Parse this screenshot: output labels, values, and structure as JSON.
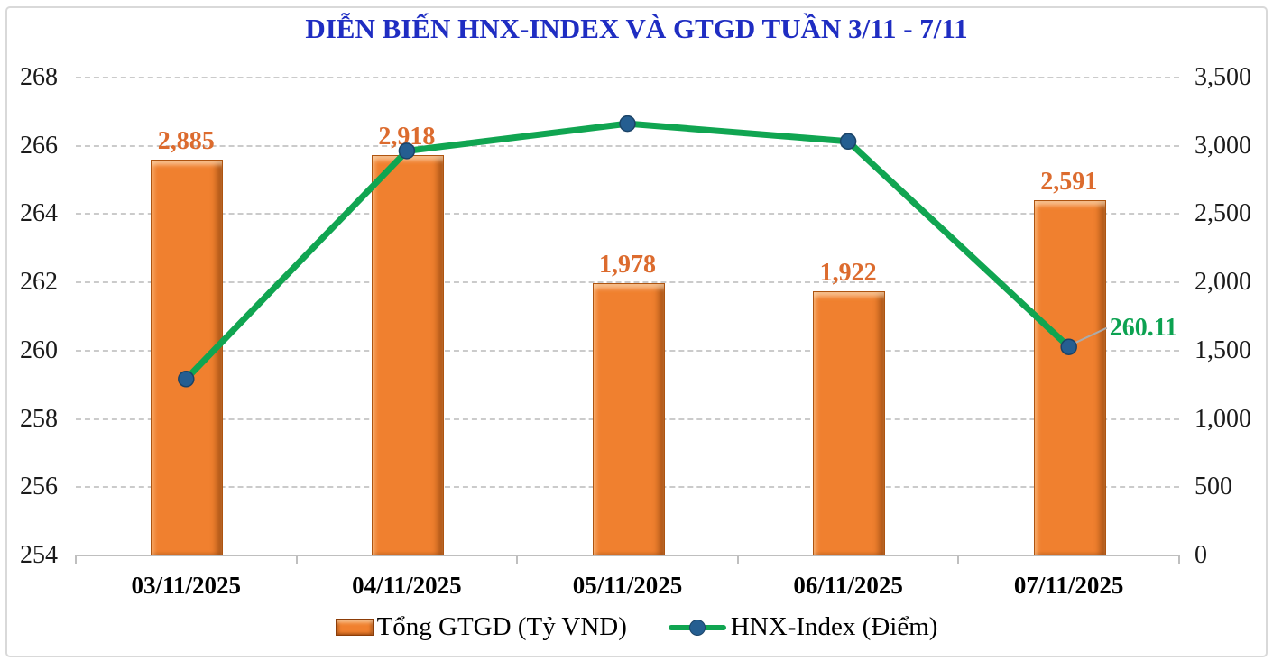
{
  "title": "DIỄN BIẾN HNX-INDEX VÀ GTGD TUẦN 3/11 - 7/11",
  "chart_data": {
    "type": "combo-bar-line",
    "title": "DIỄN BIẾN HNX-INDEX VÀ GTGD TUẦN 3/11 - 7/11",
    "categories": [
      "03/11/2025",
      "04/11/2025",
      "05/11/2025",
      "06/11/2025",
      "07/11/2025"
    ],
    "series": [
      {
        "name": "Tổng GTGD (Tỷ VND)",
        "type": "bar",
        "axis": "right",
        "values": [
          2885,
          2918,
          1978,
          1922,
          2591
        ],
        "labels": [
          "2,885",
          "2,918",
          "1,978",
          "1,922",
          "2,591"
        ],
        "color": "#F0802F",
        "label_color": "#DC6B2E"
      },
      {
        "name": "HNX-Index (Điểm)",
        "type": "line",
        "axis": "left",
        "values": [
          259.17,
          265.85,
          266.65,
          266.13,
          260.11
        ],
        "color": "#10A551",
        "marker_color": "#255E91",
        "last_point_label": "260.11",
        "last_point_label_color": "#0CA251"
      }
    ],
    "axes": {
      "left": {
        "min": 254,
        "max": 268,
        "step": 2,
        "ticks": [
          "254",
          "256",
          "258",
          "260",
          "262",
          "264",
          "266",
          "268"
        ]
      },
      "right": {
        "min": 0,
        "max": 3500,
        "step": 500,
        "ticks": [
          "0",
          "500",
          "1,000",
          "1,500",
          "2,000",
          "2,500",
          "3,000",
          "3,500"
        ]
      }
    },
    "grid": "horizontal-dashed",
    "legend_position": "bottom"
  },
  "legend": {
    "items": [
      {
        "label": "Tổng GTGD (Tỷ VND)",
        "marker": "bar"
      },
      {
        "label": "HNX-Index (Điểm)",
        "marker": "line-dot"
      }
    ]
  },
  "colors": {
    "title": "#1F2DC2",
    "bar_fill": "#F0802F",
    "bar_border": "#AE5410",
    "bar_label": "#DC6B2E",
    "line": "#10A551",
    "marker": "#255E91",
    "gridline": "#CBCBCB",
    "axis_line": "#BFBFBF",
    "callout_leader": "#ABABAB",
    "callout_text": "#0CA251"
  }
}
